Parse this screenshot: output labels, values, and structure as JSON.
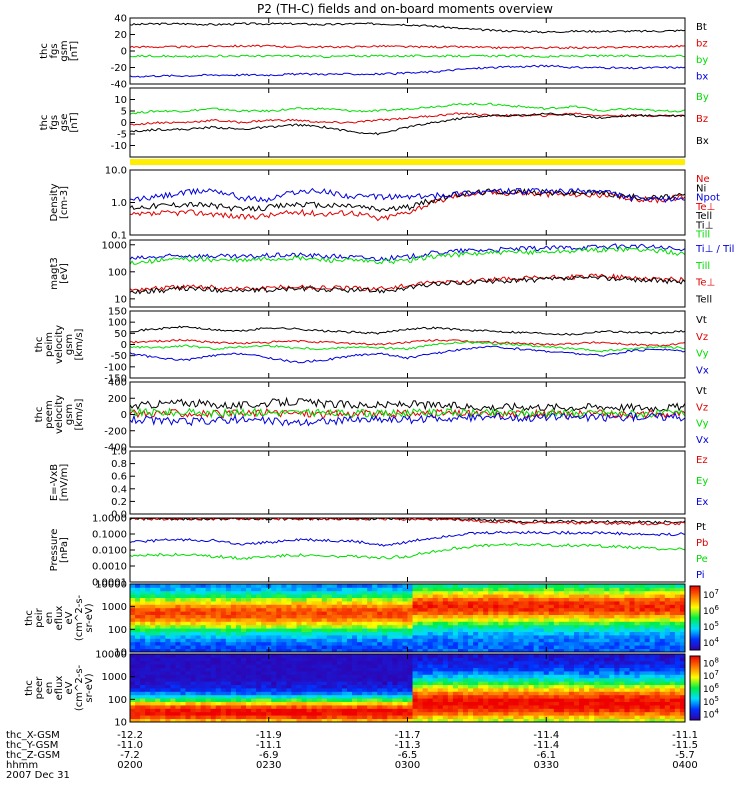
{
  "title": "P2 (TH-C) fields and on-board moments overview",
  "colors": {
    "black": "#000000",
    "red": "#e00000",
    "green": "#00dd00",
    "blue": "#0000dd",
    "yellow": "#ffee00"
  },
  "chart_data": [
    {
      "type": "line",
      "ylabel": [
        "thc",
        "fgs",
        "gsm",
        "[nT]"
      ],
      "ylim": [
        -40,
        40
      ],
      "yticks": [
        -40,
        -20,
        0,
        20,
        40
      ],
      "legend_placement": "right",
      "series": [
        {
          "name": "Bt",
          "color": "black",
          "values": [
            32,
            33,
            33,
            32,
            33,
            33,
            33,
            32,
            33,
            33,
            32,
            30,
            27,
            25,
            24,
            23,
            24,
            24,
            24,
            24,
            25
          ]
        },
        {
          "name": "bz",
          "color": "red",
          "values": [
            5,
            5,
            5,
            6,
            6,
            6,
            5,
            5,
            5,
            6,
            5,
            5,
            5,
            4,
            4,
            4,
            4,
            4,
            5,
            5,
            6
          ]
        },
        {
          "name": "by",
          "color": "green",
          "values": [
            -6,
            -6,
            -7,
            -6,
            -6,
            -6,
            -6,
            -7,
            -6,
            -6,
            -6,
            -6,
            -6,
            -6,
            -6,
            -7,
            -6,
            -6,
            -6,
            -6,
            -6
          ]
        },
        {
          "name": "bx",
          "color": "blue",
          "values": [
            -31,
            -30,
            -30,
            -29,
            -29,
            -29,
            -28,
            -28,
            -28,
            -28,
            -27,
            -25,
            -22,
            -20,
            -19,
            -18,
            -20,
            -20,
            -21,
            -20,
            -20
          ]
        }
      ]
    },
    {
      "type": "line",
      "ylabel": [
        "thc",
        "fgs",
        "gse",
        "[nT]"
      ],
      "ylim": [
        -15,
        15
      ],
      "yticks": [
        -10,
        -5,
        0,
        5,
        10
      ],
      "legend_placement": "right",
      "series": [
        {
          "name": "By",
          "color": "green",
          "values": [
            4,
            5,
            5,
            6,
            5,
            5,
            6,
            6,
            5,
            5,
            6,
            7,
            8,
            8,
            7,
            6,
            7,
            5,
            6,
            5,
            5
          ]
        },
        {
          "name": "Bz",
          "color": "red",
          "values": [
            -1,
            0,
            0,
            1,
            0,
            1,
            1,
            0,
            0,
            1,
            2,
            3,
            4,
            3,
            3,
            3,
            4,
            3,
            3,
            3,
            3
          ]
        },
        {
          "name": "Bx",
          "color": "black",
          "values": [
            -4,
            -3,
            -3,
            -2,
            -3,
            -2,
            -1,
            -2,
            -4,
            -5,
            -2,
            0,
            2,
            3,
            3,
            4,
            3,
            2,
            3,
            3,
            3
          ]
        }
      ]
    },
    {
      "type": "line",
      "ylabel": [
        "Density",
        "[cm-3]"
      ],
      "yscale": "log",
      "ylim": [
        0.1,
        10
      ],
      "yticks": [
        "0.1",
        "1.0",
        "10.0"
      ],
      "legend_placement": "right",
      "series": [
        {
          "name": "Ne",
          "color": "red",
          "values": [
            0.4,
            0.45,
            0.5,
            0.45,
            0.35,
            0.4,
            0.5,
            0.45,
            0.5,
            0.3,
            0.5,
            1.0,
            1.8,
            2.0,
            2.0,
            1.8,
            1.8,
            1.7,
            1.3,
            1.2,
            1.5
          ]
        },
        {
          "name": "Ni",
          "color": "black",
          "values": [
            0.7,
            0.8,
            0.9,
            0.8,
            0.6,
            0.7,
            0.9,
            0.8,
            0.8,
            0.6,
            0.7,
            1.2,
            1.9,
            2.2,
            2.2,
            2.0,
            2.0,
            2.0,
            1.5,
            1.4,
            1.6
          ]
        },
        {
          "name": "Npot",
          "color": "blue",
          "values": [
            1.2,
            1.5,
            2.0,
            2.5,
            1.4,
            1.2,
            2.2,
            2.2,
            1.5,
            1.5,
            1.5,
            1.6,
            2.0,
            2.2,
            2.2,
            2.2,
            2.2,
            2.2,
            1.4,
            1.2,
            1.4
          ]
        },
        {
          "name": "Te⊥",
          "color": "red",
          "values": []
        },
        {
          "name": "Tell",
          "color": "black",
          "values": []
        },
        {
          "name": "Ti⊥",
          "color": "black",
          "values": []
        },
        {
          "name": "Till",
          "color": "green",
          "values": []
        }
      ]
    },
    {
      "type": "line",
      "ylabel": [
        "magt3",
        "[eV]"
      ],
      "yscale": "log",
      "ylim": [
        5,
        1500
      ],
      "yticks": [
        "10",
        "100",
        "1000"
      ],
      "series": [
        {
          "name": "Ti⊥ / Til",
          "color": "blue",
          "values": [
            300,
            350,
            400,
            380,
            350,
            400,
            420,
            380,
            350,
            300,
            350,
            500,
            600,
            650,
            700,
            750,
            800,
            850,
            900,
            800,
            600
          ]
        },
        {
          "name": "Till",
          "color": "green",
          "values": [
            220,
            260,
            300,
            280,
            260,
            300,
            320,
            280,
            260,
            230,
            260,
            380,
            450,
            500,
            520,
            560,
            600,
            650,
            700,
            600,
            450
          ]
        },
        {
          "name": "Te⊥",
          "color": "red",
          "values": [
            22,
            25,
            28,
            26,
            24,
            25,
            28,
            26,
            25,
            24,
            30,
            40,
            45,
            50,
            55,
            60,
            65,
            70,
            60,
            55,
            50
          ]
        },
        {
          "name": "Tell",
          "color": "black",
          "values": [
            18,
            20,
            24,
            22,
            20,
            21,
            24,
            22,
            21,
            20,
            25,
            35,
            40,
            45,
            48,
            52,
            56,
            60,
            52,
            48,
            42
          ]
        }
      ]
    },
    {
      "type": "line",
      "ylabel": [
        "thc",
        "peim",
        "velocity",
        "gsm",
        "[km/s]"
      ],
      "ylim": [
        -150,
        150
      ],
      "yticks": [
        -150,
        -100,
        -50,
        0,
        50,
        100,
        150
      ],
      "legend_placement": "right",
      "series": [
        {
          "name": "Vt",
          "color": "black",
          "values": [
            60,
            70,
            80,
            65,
            60,
            75,
            70,
            60,
            55,
            50,
            70,
            75,
            65,
            60,
            55,
            50,
            45,
            60,
            55,
            50,
            60
          ]
        },
        {
          "name": "Vz",
          "color": "red",
          "values": [
            10,
            15,
            20,
            10,
            5,
            10,
            15,
            10,
            5,
            0,
            10,
            20,
            15,
            10,
            5,
            0,
            5,
            10,
            0,
            -5,
            5
          ]
        },
        {
          "name": "Vy",
          "color": "green",
          "values": [
            -10,
            -15,
            -5,
            -20,
            -10,
            -5,
            -15,
            -20,
            -10,
            -15,
            -20,
            0,
            10,
            5,
            0,
            -10,
            -20,
            -30,
            -20,
            -10,
            -15
          ]
        },
        {
          "name": "Vx",
          "color": "blue",
          "values": [
            -40,
            -60,
            -70,
            -50,
            -40,
            -60,
            -80,
            -70,
            -50,
            -40,
            -60,
            -40,
            -20,
            -10,
            -20,
            -30,
            -40,
            -50,
            -30,
            -20,
            -30
          ]
        }
      ]
    },
    {
      "type": "line",
      "ylabel": [
        "thc",
        "peem",
        "velocity",
        "gsm",
        "[km/s]"
      ],
      "ylim": [
        -400,
        400
      ],
      "yticks": [
        -400,
        -200,
        0,
        200,
        400
      ],
      "legend_placement": "right",
      "series": [
        {
          "name": "Vt",
          "color": "black",
          "values": [
            100,
            130,
            150,
            120,
            110,
            140,
            160,
            130,
            120,
            110,
            130,
            110,
            100,
            90,
            100,
            95,
            90,
            100,
            90,
            85,
            95
          ]
        },
        {
          "name": "Vz",
          "color": "red",
          "values": [
            10,
            20,
            15,
            5,
            10,
            20,
            15,
            5,
            10,
            0,
            10,
            15,
            10,
            5,
            10,
            5,
            0,
            10,
            5,
            0,
            10
          ]
        },
        {
          "name": "Vy",
          "color": "green",
          "values": [
            20,
            30,
            25,
            15,
            20,
            30,
            25,
            15,
            20,
            10,
            20,
            25,
            20,
            15,
            20,
            15,
            10,
            20,
            15,
            10,
            20
          ]
        },
        {
          "name": "Vx",
          "color": "blue",
          "values": [
            -60,
            -80,
            -90,
            -70,
            -60,
            -80,
            -100,
            -80,
            -70,
            -60,
            -70,
            -50,
            -40,
            -30,
            -40,
            -35,
            -30,
            -40,
            -30,
            -25,
            -35
          ]
        }
      ]
    },
    {
      "type": "line",
      "ylabel": [
        "E=-VxB",
        "[mV/m]"
      ],
      "ylim": [
        0,
        1
      ],
      "yticks": [
        "0.0",
        "0.2",
        "0.4",
        "0.6",
        "0.8",
        "1.0"
      ],
      "legend_placement": "right",
      "series": [
        {
          "name": "Ez",
          "color": "red",
          "values": []
        },
        {
          "name": "Ey",
          "color": "green",
          "values": []
        },
        {
          "name": "Ex",
          "color": "blue",
          "values": []
        }
      ]
    },
    {
      "type": "line",
      "ylabel": [
        "Pressure",
        "[nPa]"
      ],
      "yscale": "log",
      "ylim": [
        0.0001,
        1
      ],
      "yticks": [
        "0.0001",
        "0.0010",
        "0.0100",
        "0.1000",
        "1.0000"
      ],
      "legend_placement": "right",
      "series": [
        {
          "name": "Pt",
          "color": "black",
          "values": [
            0.9,
            0.9,
            0.9,
            0.9,
            0.9,
            0.9,
            0.9,
            0.9,
            0.9,
            0.9,
            0.9,
            0.9,
            0.8,
            0.7,
            0.6,
            0.6,
            0.6,
            0.6,
            0.55,
            0.55,
            0.55
          ]
        },
        {
          "name": "Pb",
          "color": "red",
          "values": [
            0.9,
            0.9,
            0.9,
            0.9,
            0.9,
            0.9,
            0.9,
            0.9,
            0.9,
            0.9,
            0.85,
            0.8,
            0.7,
            0.6,
            0.5,
            0.5,
            0.5,
            0.5,
            0.45,
            0.45,
            0.45
          ]
        },
        {
          "name": "Pe",
          "color": "green",
          "values": [
            0.004,
            0.005,
            0.005,
            0.004,
            0.003,
            0.004,
            0.005,
            0.004,
            0.004,
            0.003,
            0.004,
            0.008,
            0.015,
            0.02,
            0.022,
            0.02,
            0.02,
            0.018,
            0.015,
            0.012,
            0.012
          ]
        },
        {
          "name": "Pi",
          "color": "blue",
          "values": [
            0.03,
            0.04,
            0.045,
            0.04,
            0.02,
            0.03,
            0.045,
            0.04,
            0.035,
            0.02,
            0.03,
            0.06,
            0.1,
            0.12,
            0.13,
            0.12,
            0.12,
            0.12,
            0.1,
            0.09,
            0.1
          ]
        }
      ]
    },
    {
      "type": "heatmap",
      "ylabel": [
        "thc",
        "peir",
        "en",
        "eflux",
        "eV",
        "(cm^2-s-",
        "sr-eV)"
      ],
      "yscale": "log",
      "ylim": [
        10,
        10000
      ],
      "yticks": [
        "10",
        "100",
        "1000",
        "10000"
      ],
      "colorbar_ticks": [
        "10^4",
        "10^5",
        "10^6",
        "10^7"
      ]
    },
    {
      "type": "heatmap",
      "ylabel": [
        "thc",
        "peer",
        "en",
        "eflux",
        "eV",
        "(cm^2-s-",
        "sr-eV)"
      ],
      "yscale": "log",
      "ylim": [
        10,
        10000
      ],
      "yticks": [
        "10",
        "100",
        "1000",
        "10000"
      ],
      "colorbar_ticks": [
        "10^4",
        "10^5",
        "10^6",
        "10^7",
        "10^8"
      ]
    }
  ],
  "xaxis": {
    "tick_labels": [
      "0200",
      "0230",
      "0300",
      "0330",
      "0400"
    ],
    "rows": [
      {
        "label": "thc_X-GSM",
        "values": [
          "-12.2",
          "-11.9",
          "-11.7",
          "-11.4",
          "-11.1"
        ]
      },
      {
        "label": "thc_Y-GSM",
        "values": [
          "-11.0",
          "-11.1",
          "-11.3",
          "-11.4",
          "-11.5"
        ]
      },
      {
        "label": "thc_Z-GSM",
        "values": [
          "-7.2",
          "-6.9",
          "-6.5",
          "-6.1",
          "-5.7"
        ]
      },
      {
        "label": "hhmm",
        "values": [
          "0200",
          "0230",
          "0300",
          "0330",
          "0400"
        ]
      }
    ],
    "date": "2007 Dec 31"
  }
}
